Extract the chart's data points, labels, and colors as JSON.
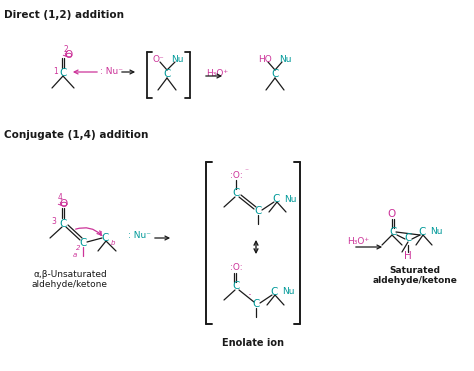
{
  "bg_color": "#ffffff",
  "black": "#1a1a1a",
  "pink": "#cc3399",
  "teal": "#009999",
  "title1": "Direct (1,2) addition",
  "title2": "Conjugate (1,4) addition",
  "label_enolate": "Enolate ion",
  "label_alpha_beta": "α,β-Unsaturated\naldehyde/ketone",
  "label_saturated": "Saturated\naldehyde/ketone"
}
